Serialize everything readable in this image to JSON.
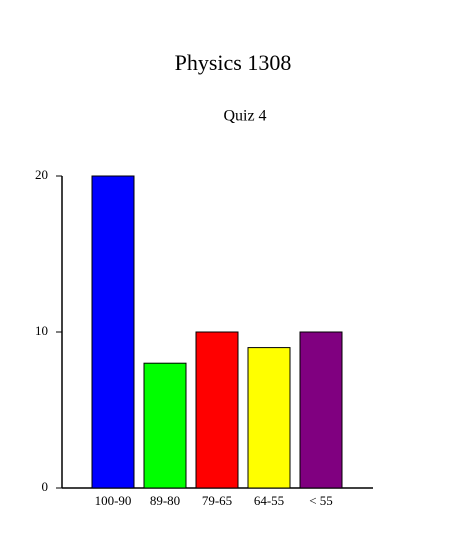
{
  "chart_data": {
    "type": "bar",
    "title": "Physics 1308",
    "subtitle": "Quiz 4",
    "categories": [
      "100-90",
      "89-80",
      "79-65",
      "64-55",
      "< 55"
    ],
    "values": [
      20,
      8,
      10,
      9,
      10
    ],
    "colors": [
      "#0000ff",
      "#00ff00",
      "#ff0000",
      "#ffff00",
      "#800080"
    ],
    "ylim": [
      0,
      20
    ],
    "yticks": [
      0,
      10,
      20
    ]
  }
}
